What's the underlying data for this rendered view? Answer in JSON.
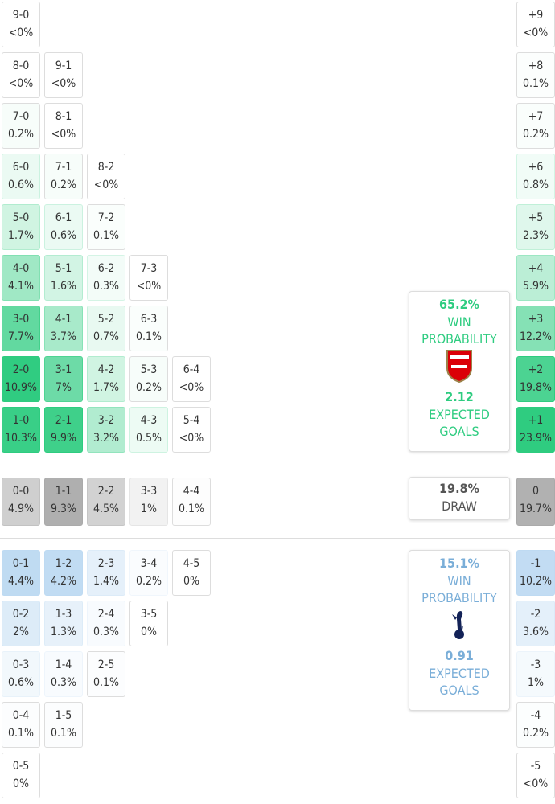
{
  "home_scores": [
    [
      {
        "score": "9-0",
        "prob": "<0%"
      }
    ],
    [
      {
        "score": "8-0",
        "prob": "<0%"
      },
      {
        "score": "9-1",
        "prob": "<0%"
      }
    ],
    [
      {
        "score": "7-0",
        "prob": "0.2%"
      },
      {
        "score": "8-1",
        "prob": "<0%"
      }
    ],
    [
      {
        "score": "6-0",
        "prob": "0.6%"
      },
      {
        "score": "7-1",
        "prob": "0.2%"
      },
      {
        "score": "8-2",
        "prob": "<0%"
      }
    ],
    [
      {
        "score": "5-0",
        "prob": "1.7%"
      },
      {
        "score": "6-1",
        "prob": "0.6%"
      },
      {
        "score": "7-2",
        "prob": "0.1%"
      }
    ],
    [
      {
        "score": "4-0",
        "prob": "4.1%"
      },
      {
        "score": "5-1",
        "prob": "1.6%"
      },
      {
        "score": "6-2",
        "prob": "0.3%"
      },
      {
        "score": "7-3",
        "prob": "<0%"
      }
    ],
    [
      {
        "score": "3-0",
        "prob": "7.7%"
      },
      {
        "score": "4-1",
        "prob": "3.7%"
      },
      {
        "score": "5-2",
        "prob": "0.7%"
      },
      {
        "score": "6-3",
        "prob": "0.1%"
      }
    ],
    [
      {
        "score": "2-0",
        "prob": "10.9%"
      },
      {
        "score": "3-1",
        "prob": "7%"
      },
      {
        "score": "4-2",
        "prob": "1.7%"
      },
      {
        "score": "5-3",
        "prob": "0.2%"
      },
      {
        "score": "6-4",
        "prob": "<0%"
      }
    ],
    [
      {
        "score": "1-0",
        "prob": "10.3%"
      },
      {
        "score": "2-1",
        "prob": "9.9%"
      },
      {
        "score": "3-2",
        "prob": "3.2%"
      },
      {
        "score": "4-3",
        "prob": "0.5%"
      },
      {
        "score": "5-4",
        "prob": "<0%"
      }
    ]
  ],
  "draw_scores": [
    [
      {
        "score": "0-0",
        "prob": "4.9%"
      },
      {
        "score": "1-1",
        "prob": "9.3%"
      },
      {
        "score": "2-2",
        "prob": "4.5%"
      },
      {
        "score": "3-3",
        "prob": "1%"
      },
      {
        "score": "4-4",
        "prob": "0.1%"
      }
    ]
  ],
  "away_scores": [
    [
      {
        "score": "0-1",
        "prob": "4.4%"
      },
      {
        "score": "1-2",
        "prob": "4.2%"
      },
      {
        "score": "2-3",
        "prob": "1.4%"
      },
      {
        "score": "3-4",
        "prob": "0.2%"
      },
      {
        "score": "4-5",
        "prob": "0%"
      }
    ],
    [
      {
        "score": "0-2",
        "prob": "2%"
      },
      {
        "score": "1-3",
        "prob": "1.3%"
      },
      {
        "score": "2-4",
        "prob": "0.3%"
      },
      {
        "score": "3-5",
        "prob": "0%"
      }
    ],
    [
      {
        "score": "0-3",
        "prob": "0.6%"
      },
      {
        "score": "1-4",
        "prob": "0.3%"
      },
      {
        "score": "2-5",
        "prob": "0.1%"
      }
    ],
    [
      {
        "score": "0-4",
        "prob": "0.1%"
      },
      {
        "score": "1-5",
        "prob": "0.1%"
      }
    ],
    [
      {
        "score": "0-5",
        "prob": "0%"
      }
    ]
  ],
  "margins": [
    {
      "label": "+9",
      "prob": "<0%"
    },
    {
      "label": "+8",
      "prob": "0.1%"
    },
    {
      "label": "+7",
      "prob": "0.2%"
    },
    {
      "label": "+6",
      "prob": "0.8%"
    },
    {
      "label": "+5",
      "prob": "2.3%"
    },
    {
      "label": "+4",
      "prob": "5.9%"
    },
    {
      "label": "+3",
      "prob": "12.2%"
    },
    {
      "label": "+2",
      "prob": "19.8%"
    },
    {
      "label": "+1",
      "prob": "23.9%"
    },
    {
      "label": "0",
      "prob": "19.7%"
    },
    {
      "label": "-1",
      "prob": "10.2%"
    },
    {
      "label": "-2",
      "prob": "3.6%"
    },
    {
      "label": "-3",
      "prob": "1%"
    },
    {
      "label": "-4",
      "prob": "0.2%"
    },
    {
      "label": "-5",
      "prob": "<0%"
    }
  ],
  "home_card": {
    "win_pct": "65.2%",
    "win_label": "WIN PROBABILITY",
    "xg": "2.12",
    "xg_label": "EXPECTED GOALS"
  },
  "draw_card": {
    "pct": "19.8%",
    "label": "DRAW"
  },
  "away_card": {
    "win_pct": "15.1%",
    "win_label": "WIN PROBABILITY",
    "xg": "0.91",
    "xg_label": "EXPECTED GOALS"
  }
}
